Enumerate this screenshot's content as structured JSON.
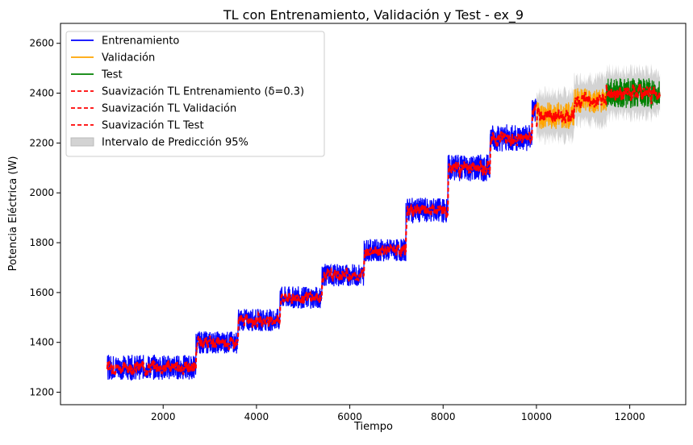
{
  "chart_data": {
    "type": "line",
    "title": "TL con Entrenamiento, Validación y Test - ex_9",
    "xlabel": "Tiempo",
    "ylabel": "Potencia Eléctrica (W)",
    "xlim": [
      -200,
      13200
    ],
    "ylim": [
      1150,
      2680
    ],
    "xticks": [
      2000,
      4000,
      6000,
      8000,
      10000,
      12000
    ],
    "yticks": [
      1200,
      1400,
      1600,
      1800,
      2000,
      2200,
      2400,
      2600
    ],
    "legend_position": "upper-left",
    "legend": [
      {
        "label": "Entrenamiento",
        "color": "#0000ff",
        "style": "solid"
      },
      {
        "label": "Validación",
        "color": "#ffa500",
        "style": "solid"
      },
      {
        "label": "Test",
        "color": "#008000",
        "style": "solid"
      },
      {
        "label": "Suavización TL Entrenamiento (δ=0.3)",
        "color": "#ff0000",
        "style": "dashed"
      },
      {
        "label": "Suavización TL Validación",
        "color": "#ff0000",
        "style": "dashed"
      },
      {
        "label": "Suavización TL Test",
        "color": "#ff0000",
        "style": "dashed"
      },
      {
        "label": "Intervalo de Predicción 95%",
        "color": "#d3d3d3",
        "style": "patch"
      }
    ],
    "series": [
      {
        "name": "Entrenamiento",
        "color": "#0000ff",
        "x_range": [
          800,
          10000
        ],
        "levels": [
          {
            "x": [
              800,
              2700
            ],
            "y": 1300,
            "spread": 50
          },
          {
            "x": [
              2700,
              3600
            ],
            "y": 1400,
            "spread": 45
          },
          {
            "x": [
              3600,
              4500
            ],
            "y": 1490,
            "spread": 45
          },
          {
            "x": [
              4500,
              5400
            ],
            "y": 1580,
            "spread": 45
          },
          {
            "x": [
              5400,
              6300
            ],
            "y": 1670,
            "spread": 45
          },
          {
            "x": [
              6300,
              7200
            ],
            "y": 1770,
            "spread": 45
          },
          {
            "x": [
              7200,
              8100
            ],
            "y": 1930,
            "spread": 50
          },
          {
            "x": [
              8100,
              9000
            ],
            "y": 2100,
            "spread": 55
          },
          {
            "x": [
              9000,
              9900
            ],
            "y": 2220,
            "spread": 55
          },
          {
            "x": [
              9900,
              10000
            ],
            "y": 2330,
            "spread": 50
          }
        ]
      },
      {
        "name": "Validación",
        "color": "#ffa500",
        "x_range": [
          10000,
          11500
        ],
        "levels": [
          {
            "x": [
              10000,
              10800
            ],
            "y": 2310,
            "spread": 55
          },
          {
            "x": [
              10800,
              11500
            ],
            "y": 2370,
            "spread": 50
          }
        ]
      },
      {
        "name": "Test",
        "color": "#008000",
        "x_range": [
          11500,
          12650
        ],
        "levels": [
          {
            "x": [
              11500,
              12650
            ],
            "y": 2400,
            "spread": 60
          }
        ]
      },
      {
        "name": "Suavización TL Entrenamiento (δ=0.3)",
        "color": "#ff0000",
        "smooth_of": "Entrenamiento"
      },
      {
        "name": "Suavización TL Validación",
        "color": "#ff0000",
        "smooth_of": "Validación"
      },
      {
        "name": "Suavización TL Test",
        "color": "#ff0000",
        "smooth_of": "Test"
      }
    ],
    "prediction_interval": {
      "name": "Intervalo de Predicción 95%",
      "color": "#d3d3d3",
      "x_range": [
        10000,
        12650
      ],
      "halfwidth": 90
    }
  }
}
